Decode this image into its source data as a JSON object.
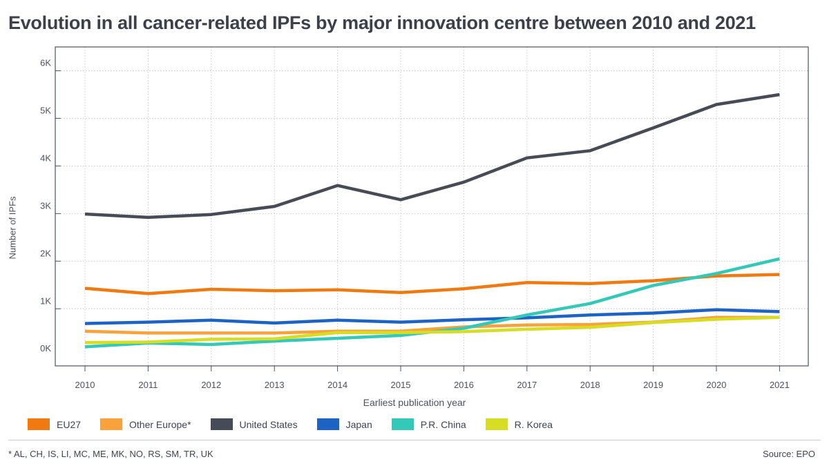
{
  "title": "Evolution in all cancer-related IPFs by major innovation centre between 2010 and 2021",
  "footnote": "* AL, CH, IS, LI, MC, ME, MK, NO, RS, SM, TR, UK",
  "source": "Source: EPO",
  "chart_data": {
    "type": "line",
    "xlabel": "Earliest publication year",
    "ylabel": "Number of IPFs",
    "x": [
      2010,
      2011,
      2012,
      2013,
      2014,
      2015,
      2016,
      2017,
      2018,
      2019,
      2020,
      2021
    ],
    "y_ticks": [
      0,
      1000,
      2000,
      3000,
      4000,
      5000,
      6000
    ],
    "y_tick_labels": [
      "0K",
      "1K",
      "2K",
      "3K",
      "4K",
      "5K",
      "6K"
    ],
    "ylim": [
      -200,
      6500
    ],
    "grid": true,
    "legend_position": "bottom",
    "series": [
      {
        "name": "EU27",
        "color": "#f07a10",
        "values": [
          1430,
          1320,
          1410,
          1380,
          1400,
          1340,
          1420,
          1550,
          1530,
          1590,
          1690,
          1720
        ]
      },
      {
        "name": "Other Europe*",
        "color": "#f9a23c",
        "values": [
          530,
          490,
          490,
          490,
          530,
          530,
          620,
          660,
          670,
          720,
          820,
          820
        ]
      },
      {
        "name": "United States",
        "color": "#454c57",
        "values": [
          2990,
          2920,
          2980,
          3150,
          3590,
          3290,
          3660,
          4170,
          4320,
          4800,
          5290,
          5500
        ]
      },
      {
        "name": "Japan",
        "color": "#1d63c6",
        "values": [
          690,
          720,
          760,
          700,
          760,
          720,
          770,
          810,
          870,
          910,
          980,
          940
        ]
      },
      {
        "name": "P.R. China",
        "color": "#33c9b9",
        "values": [
          200,
          280,
          250,
          320,
          380,
          440,
          590,
          870,
          1110,
          1490,
          1740,
          2050
        ]
      },
      {
        "name": "R. Korea",
        "color": "#d6dd22",
        "values": [
          290,
          300,
          360,
          370,
          500,
          500,
          520,
          570,
          610,
          710,
          780,
          820
        ]
      }
    ]
  }
}
